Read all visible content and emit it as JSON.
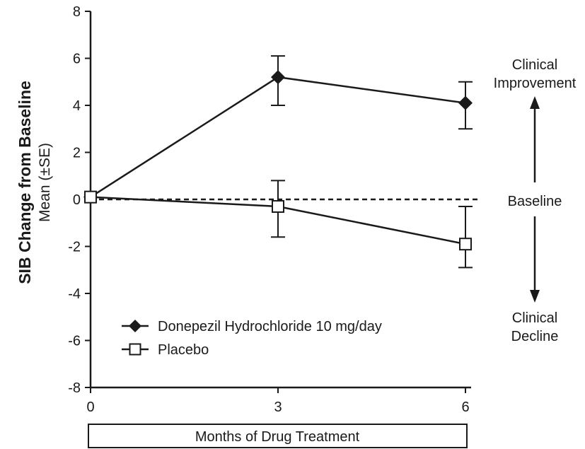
{
  "chart_data": {
    "type": "line",
    "ylabel": "SIB Change from Baseline",
    "ylabel_sub": "Mean (±SE)",
    "xlabel": "Months of Drug Treatment",
    "x": [
      0,
      3,
      6
    ],
    "xticks": [
      "0",
      "3",
      "6"
    ],
    "ylim": [
      -8,
      8
    ],
    "yticks": [
      "8",
      "6",
      "4",
      "2",
      "0",
      "-2",
      "-4",
      "-6",
      "-8"
    ],
    "baseline": 0,
    "series": [
      {
        "name": "Donepezil Hydrochloride 10 mg/day",
        "marker": "filled-diamond",
        "values": [
          0.1,
          5.2,
          4.1
        ],
        "err_low": [
          0.1,
          4.0,
          3.0
        ],
        "err_high": [
          0.1,
          6.1,
          5.0
        ]
      },
      {
        "name": "Placebo",
        "marker": "open-square",
        "values": [
          0.1,
          -0.3,
          -1.9
        ],
        "err_low": [
          0.1,
          -1.6,
          -2.9
        ],
        "err_high": [
          0.1,
          0.8,
          -0.3
        ]
      }
    ],
    "annotations": {
      "improvement_line1": "Clinical",
      "improvement_line2": "Improvement",
      "baseline_label": "Baseline",
      "decline_line1": "Clinical",
      "decline_line2": "Decline"
    },
    "colors": {
      "ink": "#1a1a1a"
    }
  }
}
